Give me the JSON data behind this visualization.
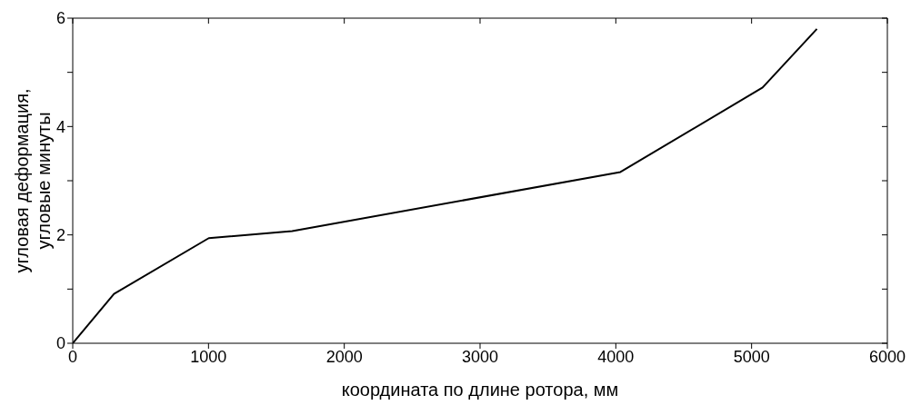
{
  "chart_data": {
    "type": "line",
    "xlabel": "координата по длине ротора, мм",
    "ylabel": "угловая деформация,\nугловые минуты",
    "x": [
      0,
      304,
      1002,
      1616,
      4034,
      5081,
      5481
    ],
    "series": [
      {
        "color": "#000000",
        "values": [
          0,
          0.91,
          1.94,
          2.07,
          3.16,
          4.72,
          5.8
        ]
      }
    ],
    "xlim": [
      0,
      6000
    ],
    "xticks": [
      0,
      1000,
      2000,
      3000,
      4000,
      5000,
      6000
    ],
    "ylim": [
      0,
      6
    ],
    "yticks": [
      0,
      {
        "value": 1,
        "label": null
      },
      2,
      {
        "value": 3,
        "label": null
      },
      4,
      {
        "value": 5,
        "label": null
      },
      6
    ],
    "grid": false,
    "marker": "none",
    "line_style": "solid"
  }
}
